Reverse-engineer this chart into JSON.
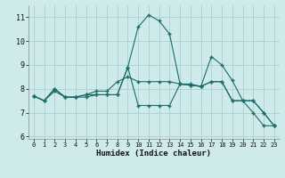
{
  "xlabel": "Humidex (Indice chaleur)",
  "background_color": "#ceeaea",
  "grid_color": "#aacfcf",
  "line_color": "#1a6b6b",
  "xlim": [
    -0.5,
    23.5
  ],
  "ylim": [
    5.9,
    11.5
  ],
  "xticks": [
    0,
    1,
    2,
    3,
    4,
    5,
    6,
    7,
    8,
    9,
    10,
    11,
    12,
    13,
    14,
    15,
    16,
    17,
    18,
    19,
    20,
    21,
    22,
    23
  ],
  "yticks": [
    6,
    7,
    8,
    9,
    10,
    11
  ],
  "line1_x": [
    0,
    1,
    2,
    3,
    4,
    5,
    6,
    7,
    8,
    9,
    10,
    11,
    12,
    13,
    14,
    15,
    16,
    17,
    18,
    19,
    20,
    21,
    22,
    23
  ],
  "line1_y": [
    7.7,
    7.5,
    8.0,
    7.65,
    7.65,
    7.75,
    7.75,
    7.75,
    7.75,
    8.9,
    7.3,
    7.3,
    7.3,
    7.3,
    8.2,
    8.2,
    8.1,
    8.3,
    8.3,
    7.5,
    7.5,
    7.0,
    6.45,
    6.45
  ],
  "line2_x": [
    0,
    1,
    2,
    3,
    4,
    5,
    6,
    7,
    8,
    9,
    10,
    11,
    12,
    13,
    14,
    15,
    16,
    17,
    18,
    19,
    20,
    21,
    22,
    23
  ],
  "line2_y": [
    7.7,
    7.5,
    7.9,
    7.65,
    7.65,
    7.65,
    7.75,
    7.75,
    7.75,
    8.9,
    10.6,
    11.1,
    10.85,
    10.3,
    8.2,
    8.15,
    8.1,
    9.35,
    9.0,
    8.35,
    7.5,
    7.5,
    7.0,
    6.45
  ],
  "line3_x": [
    0,
    1,
    2,
    3,
    4,
    5,
    6,
    7,
    8,
    9,
    10,
    11,
    12,
    13,
    14,
    15,
    16,
    17,
    18,
    19,
    20,
    21,
    22,
    23
  ],
  "line3_y": [
    7.7,
    7.5,
    8.0,
    7.65,
    7.65,
    7.75,
    7.9,
    7.9,
    8.3,
    8.5,
    8.3,
    8.3,
    8.3,
    8.3,
    8.2,
    8.15,
    8.1,
    8.3,
    8.3,
    7.5,
    7.5,
    7.5,
    7.0,
    6.45
  ]
}
